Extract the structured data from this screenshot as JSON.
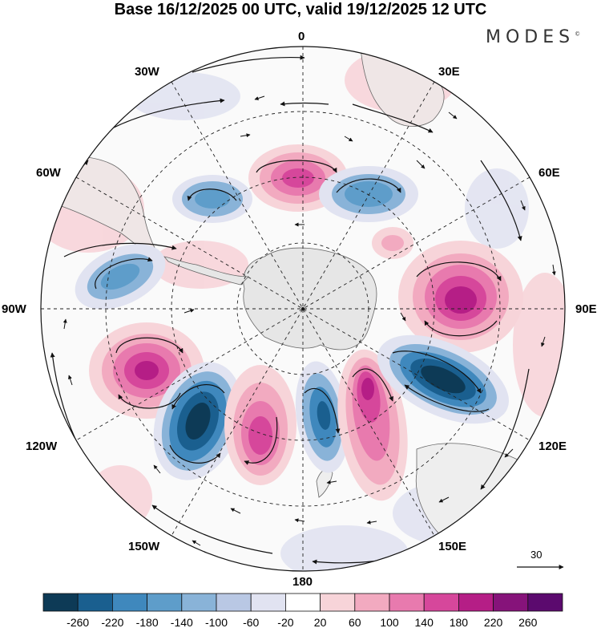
{
  "title": "Base 16/12/2025 00 UTC, valid 19/12/2025 12 UTC",
  "logo": {
    "text": "MODES",
    "mark": "©"
  },
  "longitude_labels": {
    "n0": "0",
    "n30e": "30E",
    "n60e": "60E",
    "n90e": "90E",
    "n120e": "120E",
    "n150e": "150E",
    "n180": "180",
    "n150w": "150W",
    "n120w": "120W",
    "n90w": "90W",
    "n60w": "60W",
    "n30w": "30W"
  },
  "reference_vector": {
    "label": "30"
  },
  "colorbar": {
    "ticks": [
      "-260",
      "-220",
      "-180",
      "-140",
      "-100",
      "-60",
      "-20",
      "20",
      "60",
      "100",
      "140",
      "180",
      "220",
      "260"
    ],
    "colors": [
      "#0d3a56",
      "#1a5f8f",
      "#3f88bd",
      "#5e9dca",
      "#89b3d8",
      "#b9c8e4",
      "#e1e3f1",
      "#ffffff",
      "#f7d4d9",
      "#f2aac0",
      "#e87aae",
      "#d6479b",
      "#b51e86",
      "#86137a",
      "#5b0a6e"
    ]
  }
}
